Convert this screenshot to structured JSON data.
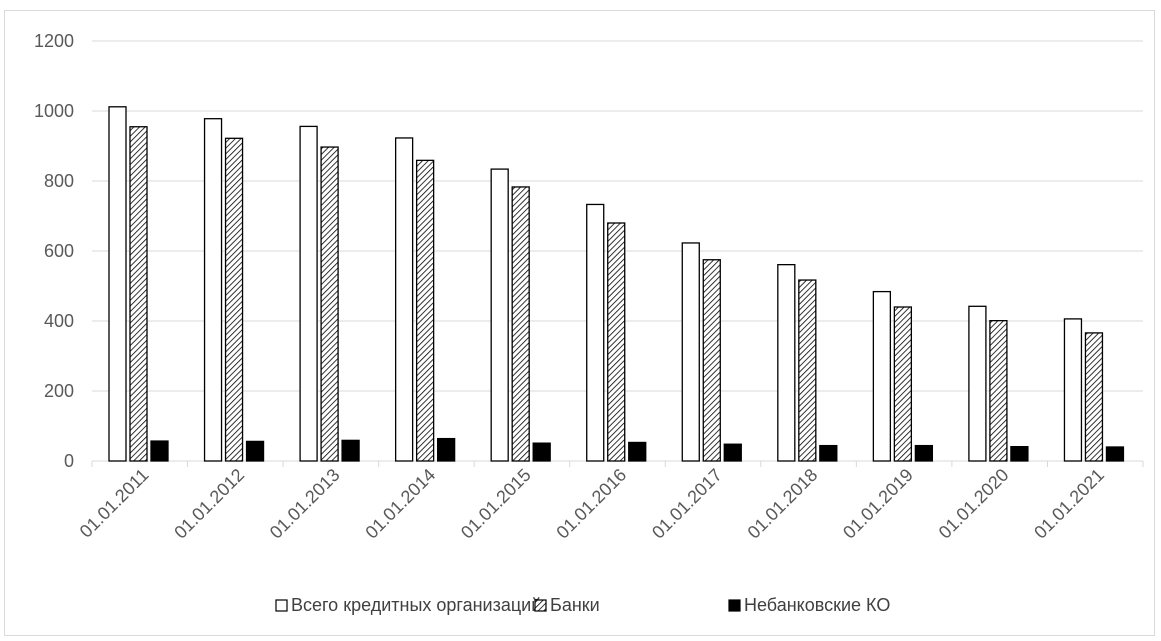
{
  "chart_data": {
    "type": "bar",
    "title": "",
    "xlabel": "",
    "ylabel": "",
    "ylim": [
      0,
      1200
    ],
    "yticks": [
      0,
      200,
      400,
      600,
      800,
      1000,
      1200
    ],
    "grid": true,
    "legend_position": "bottom",
    "categories": [
      "01.01.2011",
      "01.01.2012",
      "01.01.2013",
      "01.01.2014",
      "01.01.2015",
      "01.01.2016",
      "01.01.2017",
      "01.01.2018",
      "01.01.2019",
      "01.01.2020",
      "01.01.2021"
    ],
    "series": [
      {
        "name": "Всего кредитных организаций",
        "fill": "white",
        "values": [
          1012,
          978,
          956,
          923,
          834,
          733,
          623,
          561,
          484,
          442,
          406
        ]
      },
      {
        "name": "Банки",
        "fill": "hatch",
        "values": [
          955,
          922,
          897,
          859,
          783,
          680,
          575,
          517,
          440,
          401,
          366
        ]
      },
      {
        "name": "Небанковские КО",
        "fill": "black",
        "values": [
          57,
          56,
          59,
          64,
          51,
          53,
          48,
          44,
          44,
          41,
          40
        ]
      }
    ]
  },
  "colors": {
    "bar_stroke": "#000000",
    "gridline": "#d9d9d9",
    "axis_text": "#595959",
    "black_bar": "#000000"
  }
}
